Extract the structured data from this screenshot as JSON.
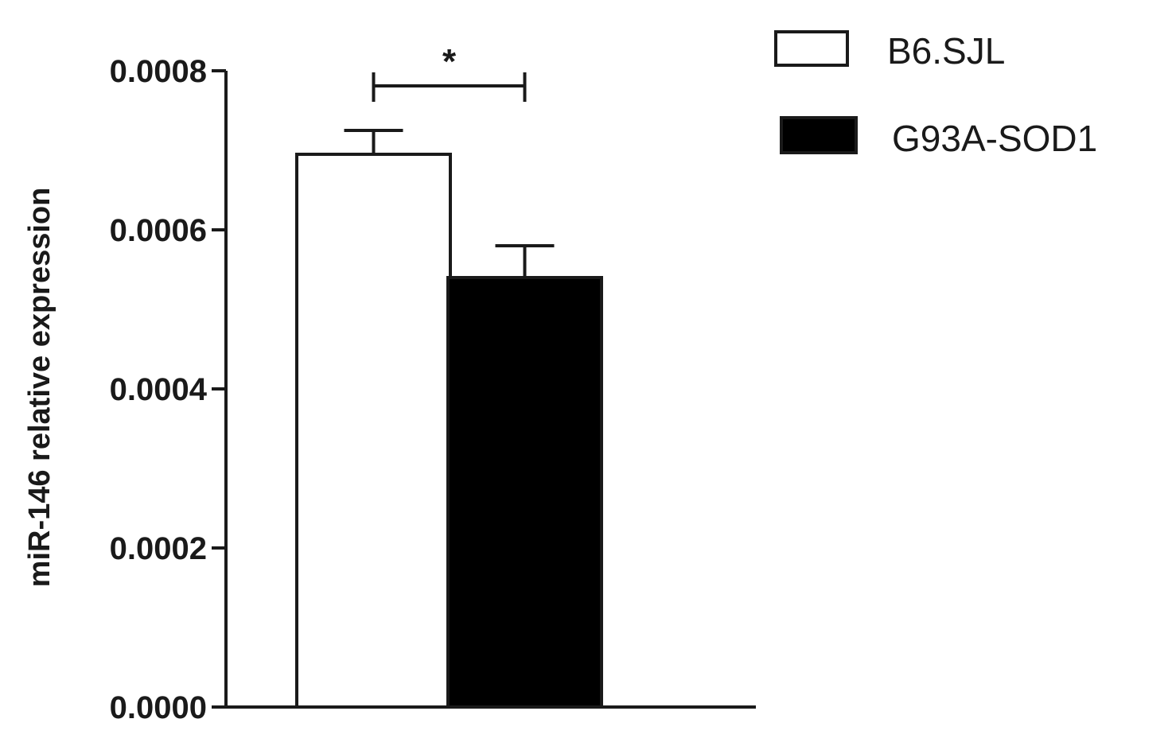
{
  "chart_data": {
    "type": "bar",
    "title": "",
    "xlabel": "",
    "ylabel": "miR-146 relative expression",
    "ylim": [
      0,
      0.0008
    ],
    "yticks": [
      0,
      0.0002,
      0.0004,
      0.0006,
      0.0008
    ],
    "ytick_labels": [
      "0.0000",
      "0.0002",
      "0.0004",
      "0.0006",
      "0.0008"
    ],
    "grid": false,
    "legend_position": "top-right",
    "series": [
      {
        "name": "B6.SJL",
        "value": 0.000695,
        "error": 3e-05,
        "color": "#ffffff"
      },
      {
        "name": "G93A-SOD1",
        "value": 0.00054,
        "error": 4e-05,
        "color": "#000000"
      }
    ],
    "annotations": [
      {
        "type": "significance",
        "between": [
          "B6.SJL",
          "G93A-SOD1"
        ],
        "label": "*"
      }
    ]
  }
}
